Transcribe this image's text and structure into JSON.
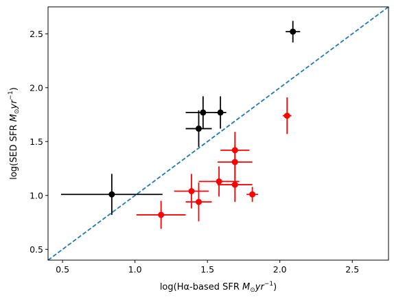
{
  "chart_data": {
    "type": "scatter",
    "xlabel": "log(Hα-based SFR $M_{\\odot}yr^{-1}$)",
    "ylabel": "log(SED SFR $M_{\\odot}yr^{-1}$)",
    "xlabel_parts": {
      "prefix": "log(Hα-based SFR ",
      "unit_main": "M",
      "unit_sub": "⊙",
      "unit_rest": "yr",
      "unit_sup": "−1",
      "suffix": ")"
    },
    "ylabel_parts": {
      "prefix": "log(SED SFR ",
      "unit_main": "M",
      "unit_sub": "⊙",
      "unit_rest": "yr",
      "unit_sup": "−1",
      "suffix": ")"
    },
    "xlim": [
      0.4,
      2.75
    ],
    "ylim": [
      0.4,
      2.75
    ],
    "xticks": [
      "0.5",
      "1.0",
      "1.5",
      "2.0",
      "2.5"
    ],
    "yticks": [
      "0.5",
      "1.0",
      "1.5",
      "2.0",
      "2.5"
    ],
    "grid": false,
    "one_to_one_line": {
      "style": "dashed",
      "color": "#1f77b4",
      "from": [
        0.4,
        0.4
      ],
      "to": [
        2.75,
        2.75
      ]
    },
    "series": [
      {
        "color": "#000000",
        "points": [
          {
            "x": 0.84,
            "y": 1.01,
            "xerr": 0.35,
            "yerr": 0.19
          },
          {
            "x": 1.44,
            "y": 1.62,
            "xerr": 0.09,
            "yerr": 0.17
          },
          {
            "x": 1.47,
            "y": 1.77,
            "xerr": 0.12,
            "yerr": 0.15
          },
          {
            "x": 1.59,
            "y": 1.77,
            "xerr": 0.04,
            "yerr": 0.15
          },
          {
            "x": 2.09,
            "y": 2.52,
            "xerr": 0.05,
            "yerr": 0.1
          }
        ]
      },
      {
        "color": "#ff0000",
        "points": [
          {
            "x": 1.18,
            "y": 0.82,
            "xerr": 0.17,
            "yerr": 0.13
          },
          {
            "x": 1.39,
            "y": 1.04,
            "xerr": 0.12,
            "yerr": 0.16
          },
          {
            "x": 1.44,
            "y": 0.94,
            "xerr": 0.09,
            "yerr": 0.18
          },
          {
            "x": 1.58,
            "y": 1.13,
            "xerr": 0.14,
            "yerr": 0.14
          },
          {
            "x": 1.69,
            "y": 1.42,
            "xerr": 0.1,
            "yerr": 0.17
          },
          {
            "x": 1.69,
            "y": 1.31,
            "xerr": 0.12,
            "yerr": 0.16
          },
          {
            "x": 1.69,
            "y": 1.1,
            "xerr": 0.12,
            "yerr": 0.16
          },
          {
            "x": 1.81,
            "y": 1.01,
            "xerr": 0.04,
            "yerr": 0.07
          },
          {
            "x": 2.05,
            "y": 1.74,
            "xerr": 0.03,
            "yerr": 0.17
          }
        ]
      }
    ]
  }
}
